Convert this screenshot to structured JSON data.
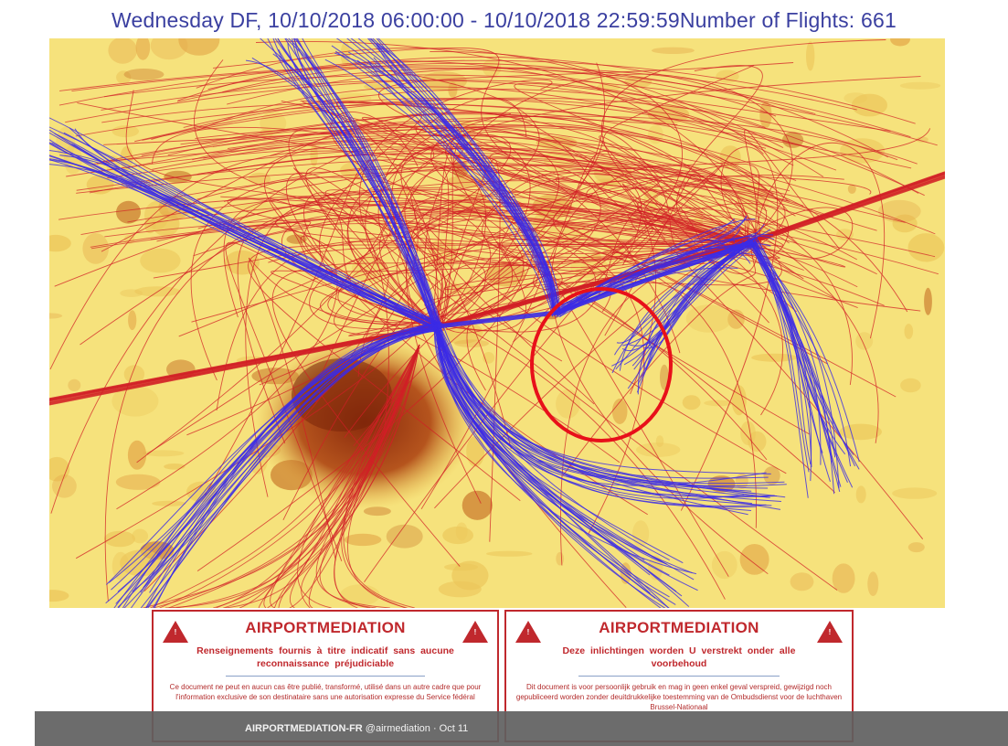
{
  "title": "Wednesday DF, 10/10/2018 06:00:00 - 10/10/2018 22:59:59Number of Flights: 661",
  "map": {
    "arrivals_color": "#d21f26",
    "departures_color": "#3b2be6",
    "highlight_circle_color": "#e8101a",
    "land_color": "#f6e27c",
    "urban_color": "#9c3a12"
  },
  "panels": [
    {
      "title": "AIRPORTMEDIATION",
      "subtitle": "Renseignements fournis à titre indicatif sans aucune reconnaissance préjudiciable",
      "body": "Ce document ne peut en aucun cas être publié, transformé, utilisé dans un autre cadre que pour l'information exclusive de son destinataire sans une autorisation expresse du Service fédéral"
    },
    {
      "title": "AIRPORTMEDIATION",
      "subtitle": "Deze inlichtingen worden U verstrekt onder alle voorbehoud",
      "body": "Dit document is voor persoonlijk gebruik en mag in geen enkel geval verspreid, gewijzigd noch gepubliceerd worden zonder deuitdrukkelijke toestemming van de Ombudsdienst voor de luchthaven Brussel-Nationaal"
    }
  ],
  "footer": {
    "handle": "AIRPORTMEDIATION-FR",
    "account": "@airmediation",
    "suffix": " · Oct 11"
  }
}
